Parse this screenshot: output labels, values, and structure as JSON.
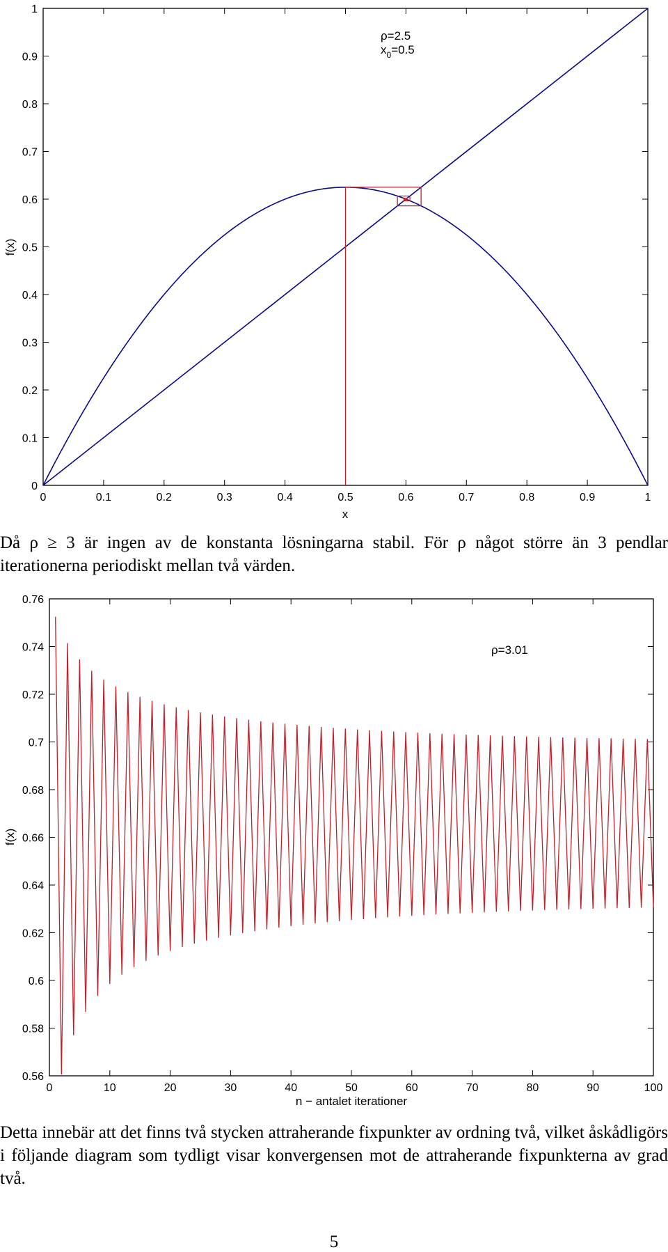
{
  "charts": [
    {
      "type": "line",
      "xlabel": "x",
      "ylabel": "f(x)",
      "xlim": [
        0,
        1
      ],
      "ylim": [
        0,
        1
      ],
      "xticks": [
        "0",
        "0.1",
        "0.2",
        "0.3",
        "0.4",
        "0.5",
        "0.6",
        "0.7",
        "0.8",
        "0.9",
        "1"
      ],
      "yticks": [
        "0",
        "0.1",
        "0.2",
        "0.3",
        "0.4",
        "0.5",
        "0.6",
        "0.7",
        "0.8",
        "0.9",
        "1"
      ],
      "annotation_rho": "ρ=2.5",
      "annotation_x0_base": "x",
      "annotation_x0_sub": "0",
      "annotation_x0_value": "=0.5",
      "rho": 2.5,
      "x0": 0.5,
      "curve_color": "#0a0a8c",
      "cobweb_color": "#c0202a",
      "series": [
        {
          "kind": "function",
          "formula": "rho*x*(1-x)"
        },
        {
          "kind": "identity",
          "formula": "x"
        },
        {
          "kind": "cobweb",
          "start": 0.5,
          "iterations": 40
        }
      ]
    },
    {
      "type": "line",
      "xlabel": "n − antalet iterationer",
      "ylabel": "f(x)",
      "xlim": [
        0,
        100
      ],
      "ylim": [
        0.56,
        0.76
      ],
      "xticks": [
        "0",
        "10",
        "20",
        "30",
        "40",
        "50",
        "60",
        "70",
        "80",
        "90",
        "100"
      ],
      "yticks": [
        "0.56",
        "0.58",
        "0.6",
        "0.62",
        "0.64",
        "0.66",
        "0.68",
        "0.7",
        "0.72",
        "0.74",
        "0.76"
      ],
      "annotation": "ρ=3.01",
      "rho": 3.01,
      "x1": 0.7525,
      "n_start": 1,
      "n_end": 100,
      "line_color": "#c0202a"
    }
  ],
  "paragraph1": "Då ρ ≥ 3 är ingen av de konstanta lösningarna stabil. För ρ något större än 3 pendlar iterationerna periodiskt mellan två värden.",
  "paragraph2": "Detta innebär att det finns två stycken attraherande fixpunkter av ordning två, vilket åskådligörs i följande diagram som tydligt visar konvergensen mot de attraherande fixpunkterna av grad två.",
  "page_number": "5"
}
